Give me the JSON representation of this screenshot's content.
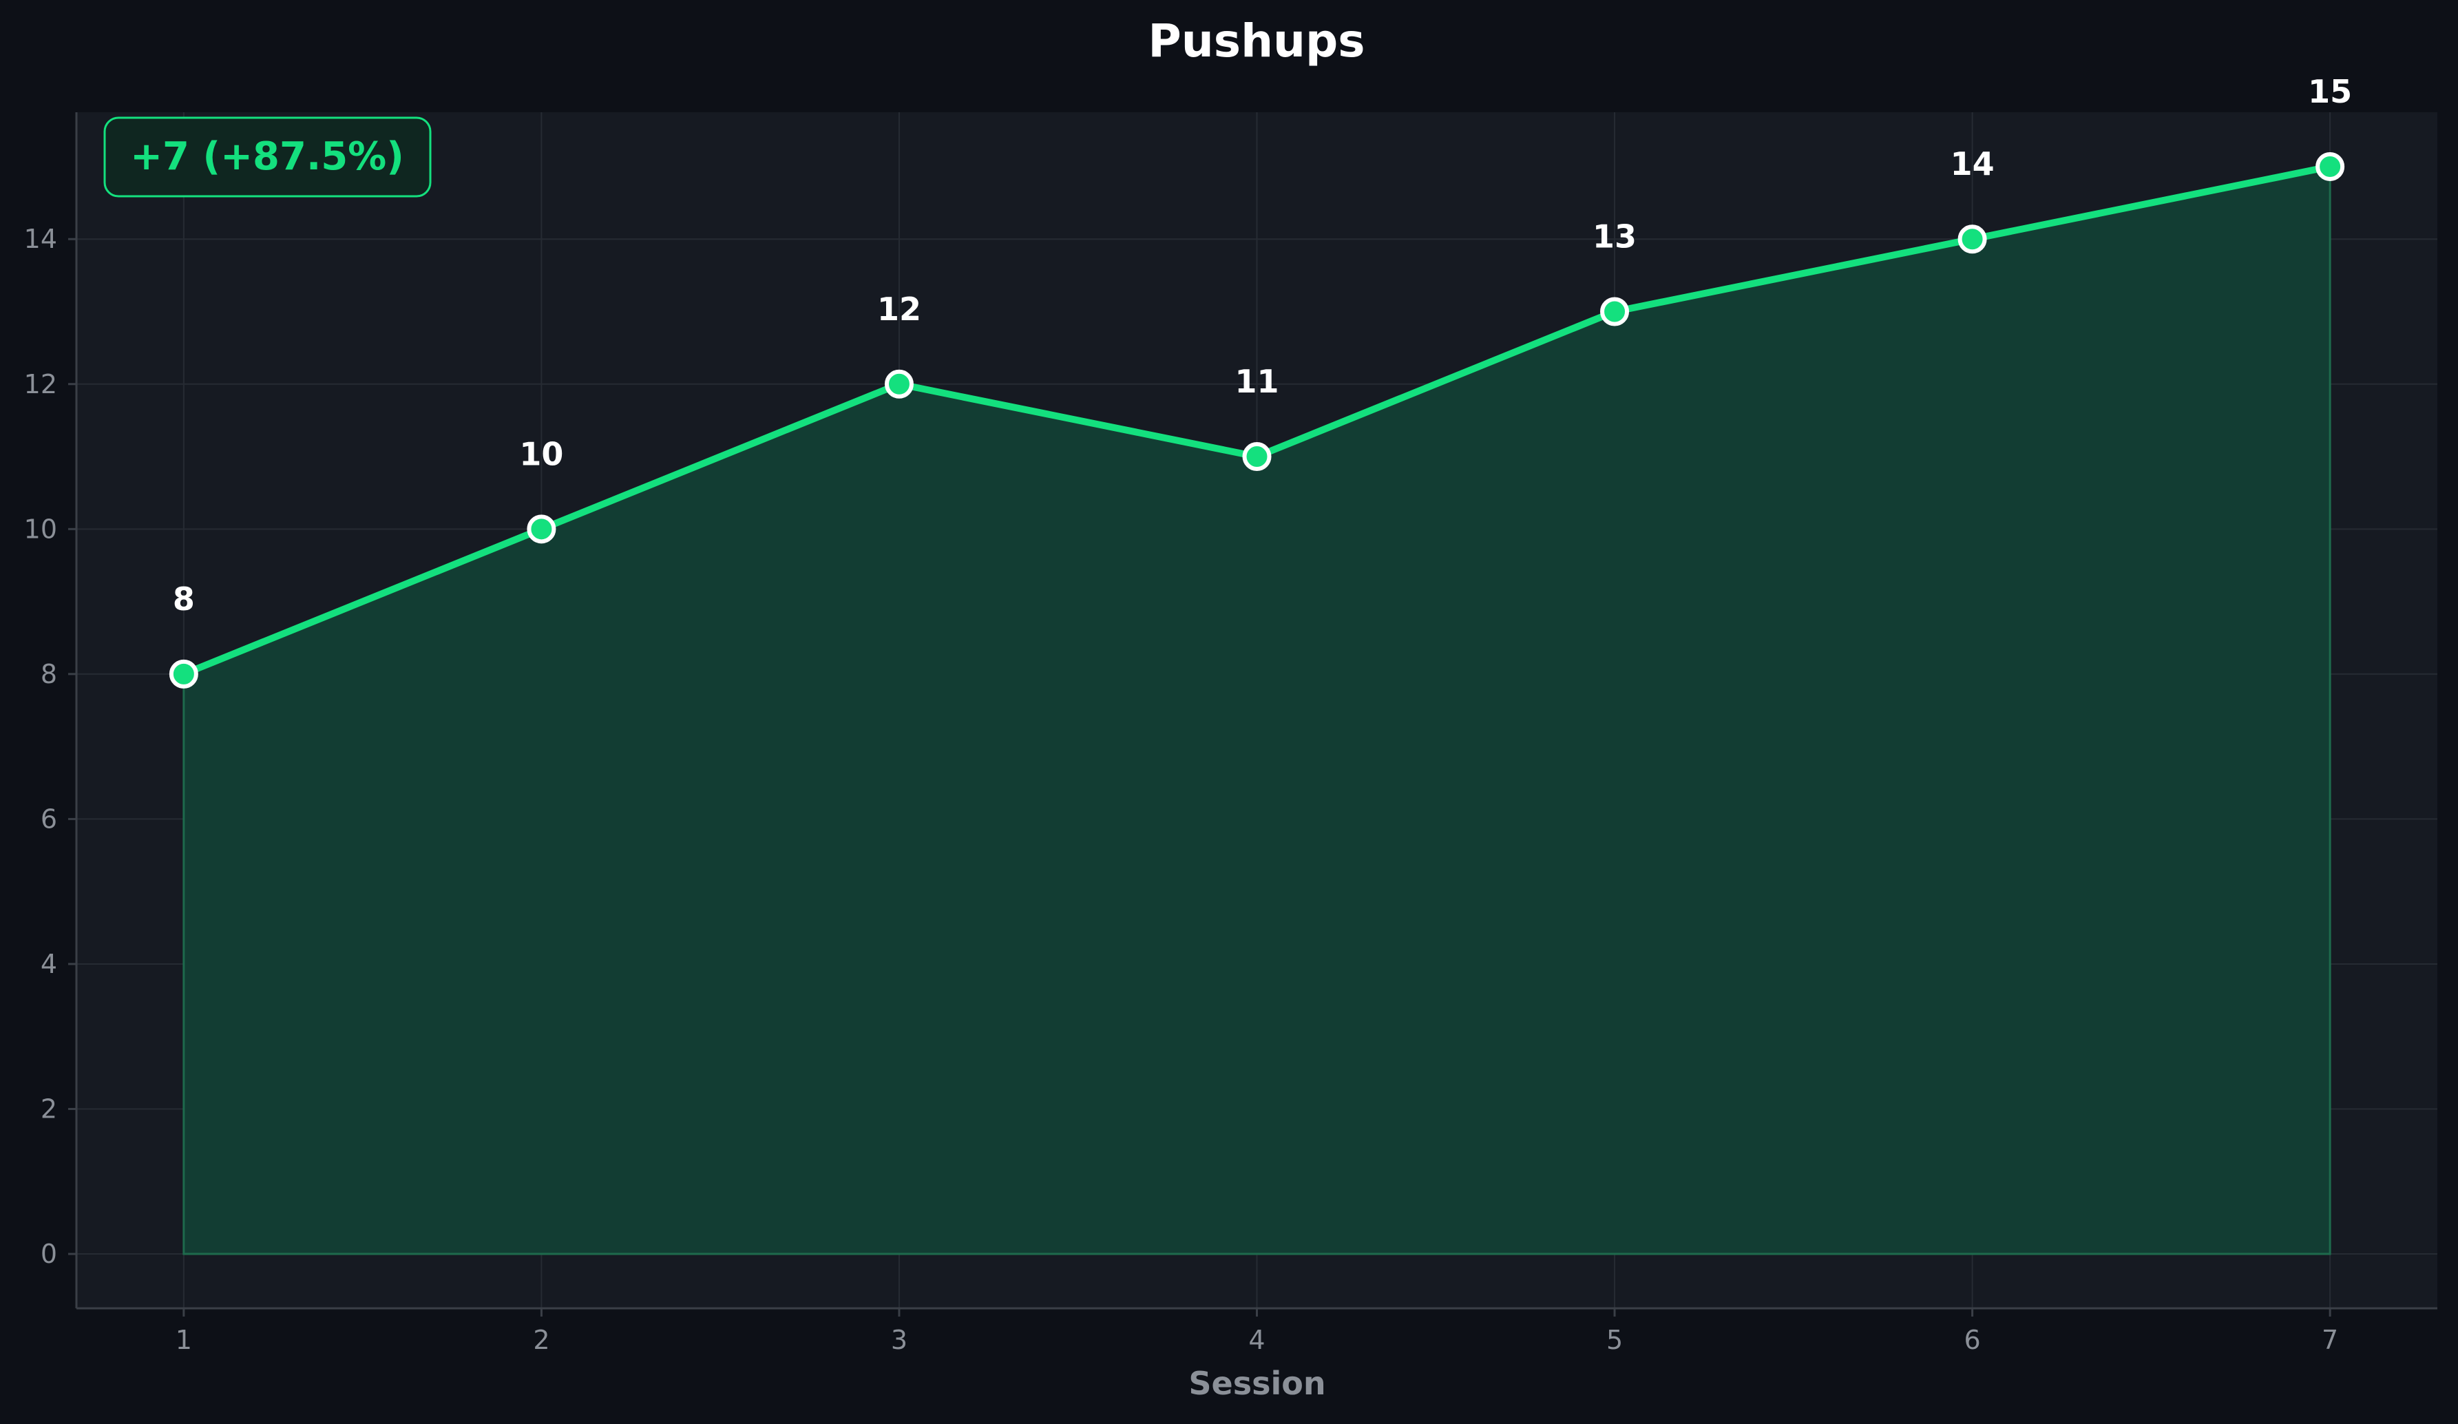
{
  "colors": {
    "page_background": "#0d1017",
    "plot_background": "#161a22",
    "line": "#14e07e",
    "area_fill": "#123d33",
    "grid": "#262b33",
    "tick_text": "#8b9098",
    "title_text": "#ffffff",
    "marker_edge": "#ffffff"
  },
  "chart_data": {
    "type": "area",
    "title": "Pushups",
    "xlabel": "Session",
    "ylabel": "",
    "x": [
      1,
      2,
      3,
      4,
      5,
      6,
      7
    ],
    "xlim": [
      0.7,
      7.3
    ],
    "ylim": [
      -0.75,
      15.75
    ],
    "x_ticks": [
      "1",
      "2",
      "3",
      "4",
      "5",
      "6",
      "7"
    ],
    "y_ticks": [
      "0",
      "2",
      "4",
      "6",
      "8",
      "10",
      "12",
      "14"
    ],
    "grid": true,
    "series": [
      {
        "values": [
          8,
          10,
          12,
          11,
          13,
          14,
          15
        ],
        "data_labels": [
          "8",
          "10",
          "12",
          "11",
          "13",
          "14",
          "15"
        ]
      }
    ],
    "annotation": {
      "text": "+7 (+87.5%)",
      "position": "top-left"
    }
  }
}
